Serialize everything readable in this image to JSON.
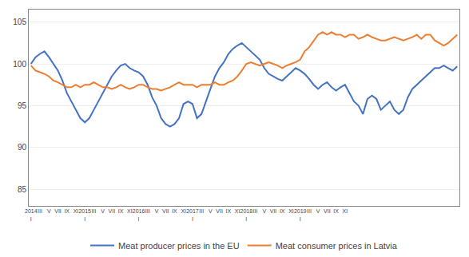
{
  "chart_data": {
    "type": "line",
    "categories": [
      "2014\nI",
      null,
      "III",
      null,
      "V",
      null,
      "VII",
      null,
      "IX",
      null,
      "XI",
      null,
      "2015\nI",
      null,
      "III",
      null,
      "V",
      null,
      "VII",
      null,
      "IX",
      null,
      "XI",
      null,
      "2016\nI",
      null,
      "III",
      null,
      "V",
      null,
      "VII",
      null,
      "IX",
      null,
      "XI",
      null,
      "2017\nI",
      null,
      "III",
      null,
      "V",
      null,
      "VII",
      null,
      "IX",
      null,
      "XI",
      null,
      "2018\nI",
      null,
      "III",
      null,
      "V",
      null,
      "VII",
      null,
      "IX",
      null,
      "XI",
      null,
      "2019\nI",
      null,
      "III",
      null,
      "V",
      null,
      "VII",
      null,
      "IX",
      null,
      "XI",
      null,
      null,
      null,
      null,
      null,
      null,
      null,
      null,
      null,
      null,
      null,
      null,
      null,
      null,
      null,
      null,
      null,
      null,
      null,
      null,
      null,
      null,
      null,
      null,
      null
    ],
    "series": [
      {
        "name": "Meat producer prices in the EU",
        "color": "#4472C4",
        "values": [
          100.0,
          100.8,
          101.2,
          101.5,
          100.8,
          100.0,
          99.2,
          98.0,
          96.5,
          95.5,
          94.5,
          93.5,
          93.0,
          93.5,
          94.5,
          95.5,
          96.5,
          97.5,
          98.5,
          99.2,
          99.8,
          100.0,
          99.5,
          99.2,
          99.0,
          98.5,
          97.5,
          96.0,
          95.0,
          93.5,
          92.8,
          92.5,
          92.8,
          93.5,
          95.2,
          95.5,
          95.2,
          93.5,
          94.0,
          95.5,
          97.0,
          98.5,
          99.5,
          100.2,
          101.2,
          101.8,
          102.2,
          102.5,
          102.0,
          101.5,
          101.0,
          100.5,
          99.5,
          98.8,
          98.5,
          98.2,
          98.0,
          98.5,
          99.0,
          99.5,
          99.2,
          98.8,
          98.2,
          97.5,
          97.0,
          97.5,
          97.8,
          97.2,
          96.8,
          97.2,
          97.5,
          96.5,
          95.5,
          95.0,
          94.0,
          95.8,
          96.2,
          95.8,
          94.5,
          95.0,
          95.5,
          94.5,
          94.0,
          94.5,
          96.0,
          97.0,
          97.5,
          98.0,
          98.5,
          99.0,
          99.5,
          99.5,
          99.8,
          99.5,
          99.2,
          99.7
        ]
      },
      {
        "name": "Meat consumer prices in Latvia",
        "color": "#ED7D31",
        "values": [
          99.8,
          99.2,
          99.0,
          98.8,
          98.5,
          98.0,
          97.8,
          97.5,
          97.2,
          97.2,
          97.5,
          97.2,
          97.5,
          97.5,
          97.8,
          97.5,
          97.2,
          97.2,
          97.0,
          97.2,
          97.5,
          97.2,
          97.0,
          97.2,
          97.5,
          97.5,
          97.2,
          97.0,
          97.0,
          96.8,
          97.0,
          97.2,
          97.5,
          97.8,
          97.5,
          97.5,
          97.5,
          97.2,
          97.5,
          97.5,
          97.5,
          97.8,
          97.5,
          97.5,
          97.8,
          98.0,
          98.5,
          99.2,
          100.0,
          100.2,
          100.0,
          99.8,
          100.0,
          100.2,
          100.0,
          99.8,
          99.5,
          99.8,
          100.0,
          100.2,
          100.5,
          101.5,
          102.0,
          102.8,
          103.5,
          103.8,
          103.5,
          103.8,
          103.5,
          103.5,
          103.2,
          103.5,
          103.5,
          103.0,
          103.2,
          103.5,
          103.2,
          103.0,
          102.8,
          102.8,
          103.0,
          103.2,
          103.0,
          102.8,
          103.0,
          103.2,
          103.5,
          103.0,
          103.5,
          103.5,
          102.8,
          102.5,
          102.2,
          102.5,
          103.0,
          103.5
        ]
      }
    ],
    "ylim": [
      83,
      106.5
    ],
    "yticks": [
      85,
      90,
      95,
      100,
      105
    ],
    "grid": true,
    "legend": "bottom"
  }
}
